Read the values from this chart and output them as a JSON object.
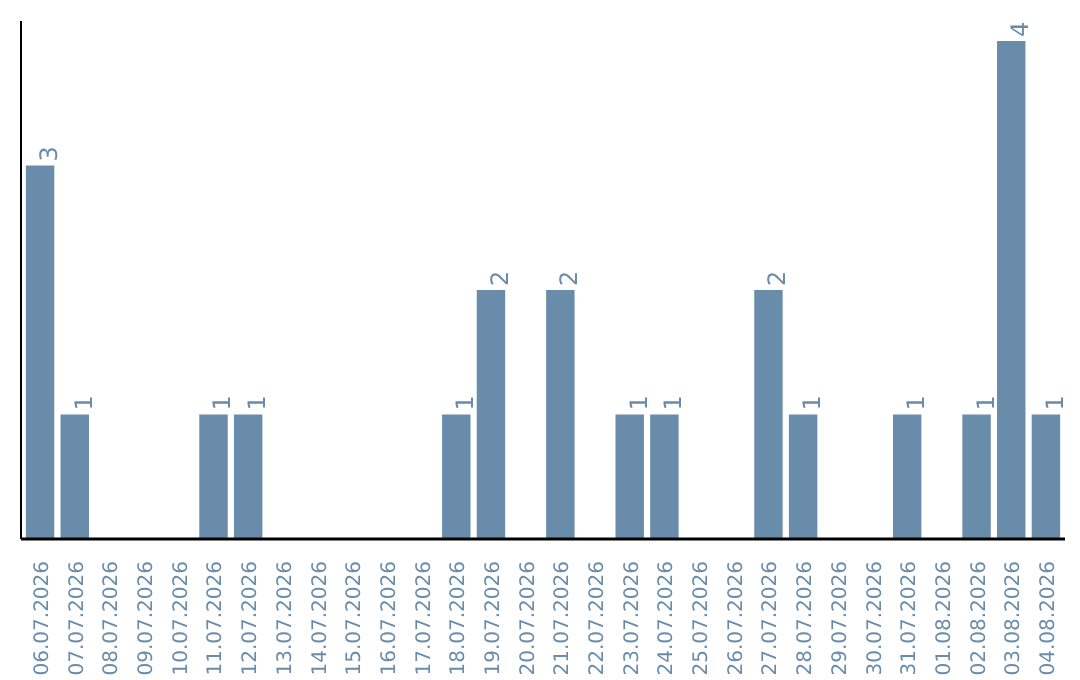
{
  "chart_data": {
    "type": "bar",
    "categories": [
      "06.07.2026",
      "07.07.2026",
      "08.07.2026",
      "09.07.2026",
      "10.07.2026",
      "11.07.2026",
      "12.07.2026",
      "13.07.2026",
      "14.07.2026",
      "15.07.2026",
      "16.07.2026",
      "17.07.2026",
      "18.07.2026",
      "19.07.2026",
      "20.07.2026",
      "21.07.2026",
      "22.07.2026",
      "23.07.2026",
      "24.07.2026",
      "25.07.2026",
      "26.07.2026",
      "27.07.2026",
      "28.07.2026",
      "29.07.2026",
      "30.07.2026",
      "31.07.2026",
      "01.08.2026",
      "02.08.2026",
      "03.08.2026",
      "04.08.2026"
    ],
    "values": [
      3,
      1,
      0,
      0,
      0,
      1,
      1,
      0,
      0,
      0,
      0,
      0,
      1,
      2,
      0,
      2,
      0,
      1,
      1,
      0,
      0,
      2,
      1,
      0,
      0,
      1,
      0,
      1,
      4,
      1
    ],
    "value_labels": [
      "3",
      "1",
      null,
      null,
      null,
      "1",
      "1",
      null,
      null,
      null,
      null,
      null,
      "1",
      "2",
      null,
      "2",
      null,
      "1",
      "1",
      null,
      null,
      "2",
      "1",
      null,
      null,
      "1",
      null,
      "1",
      "4",
      "1"
    ],
    "color": "#6a8cab",
    "tick_labels": "x"
  }
}
